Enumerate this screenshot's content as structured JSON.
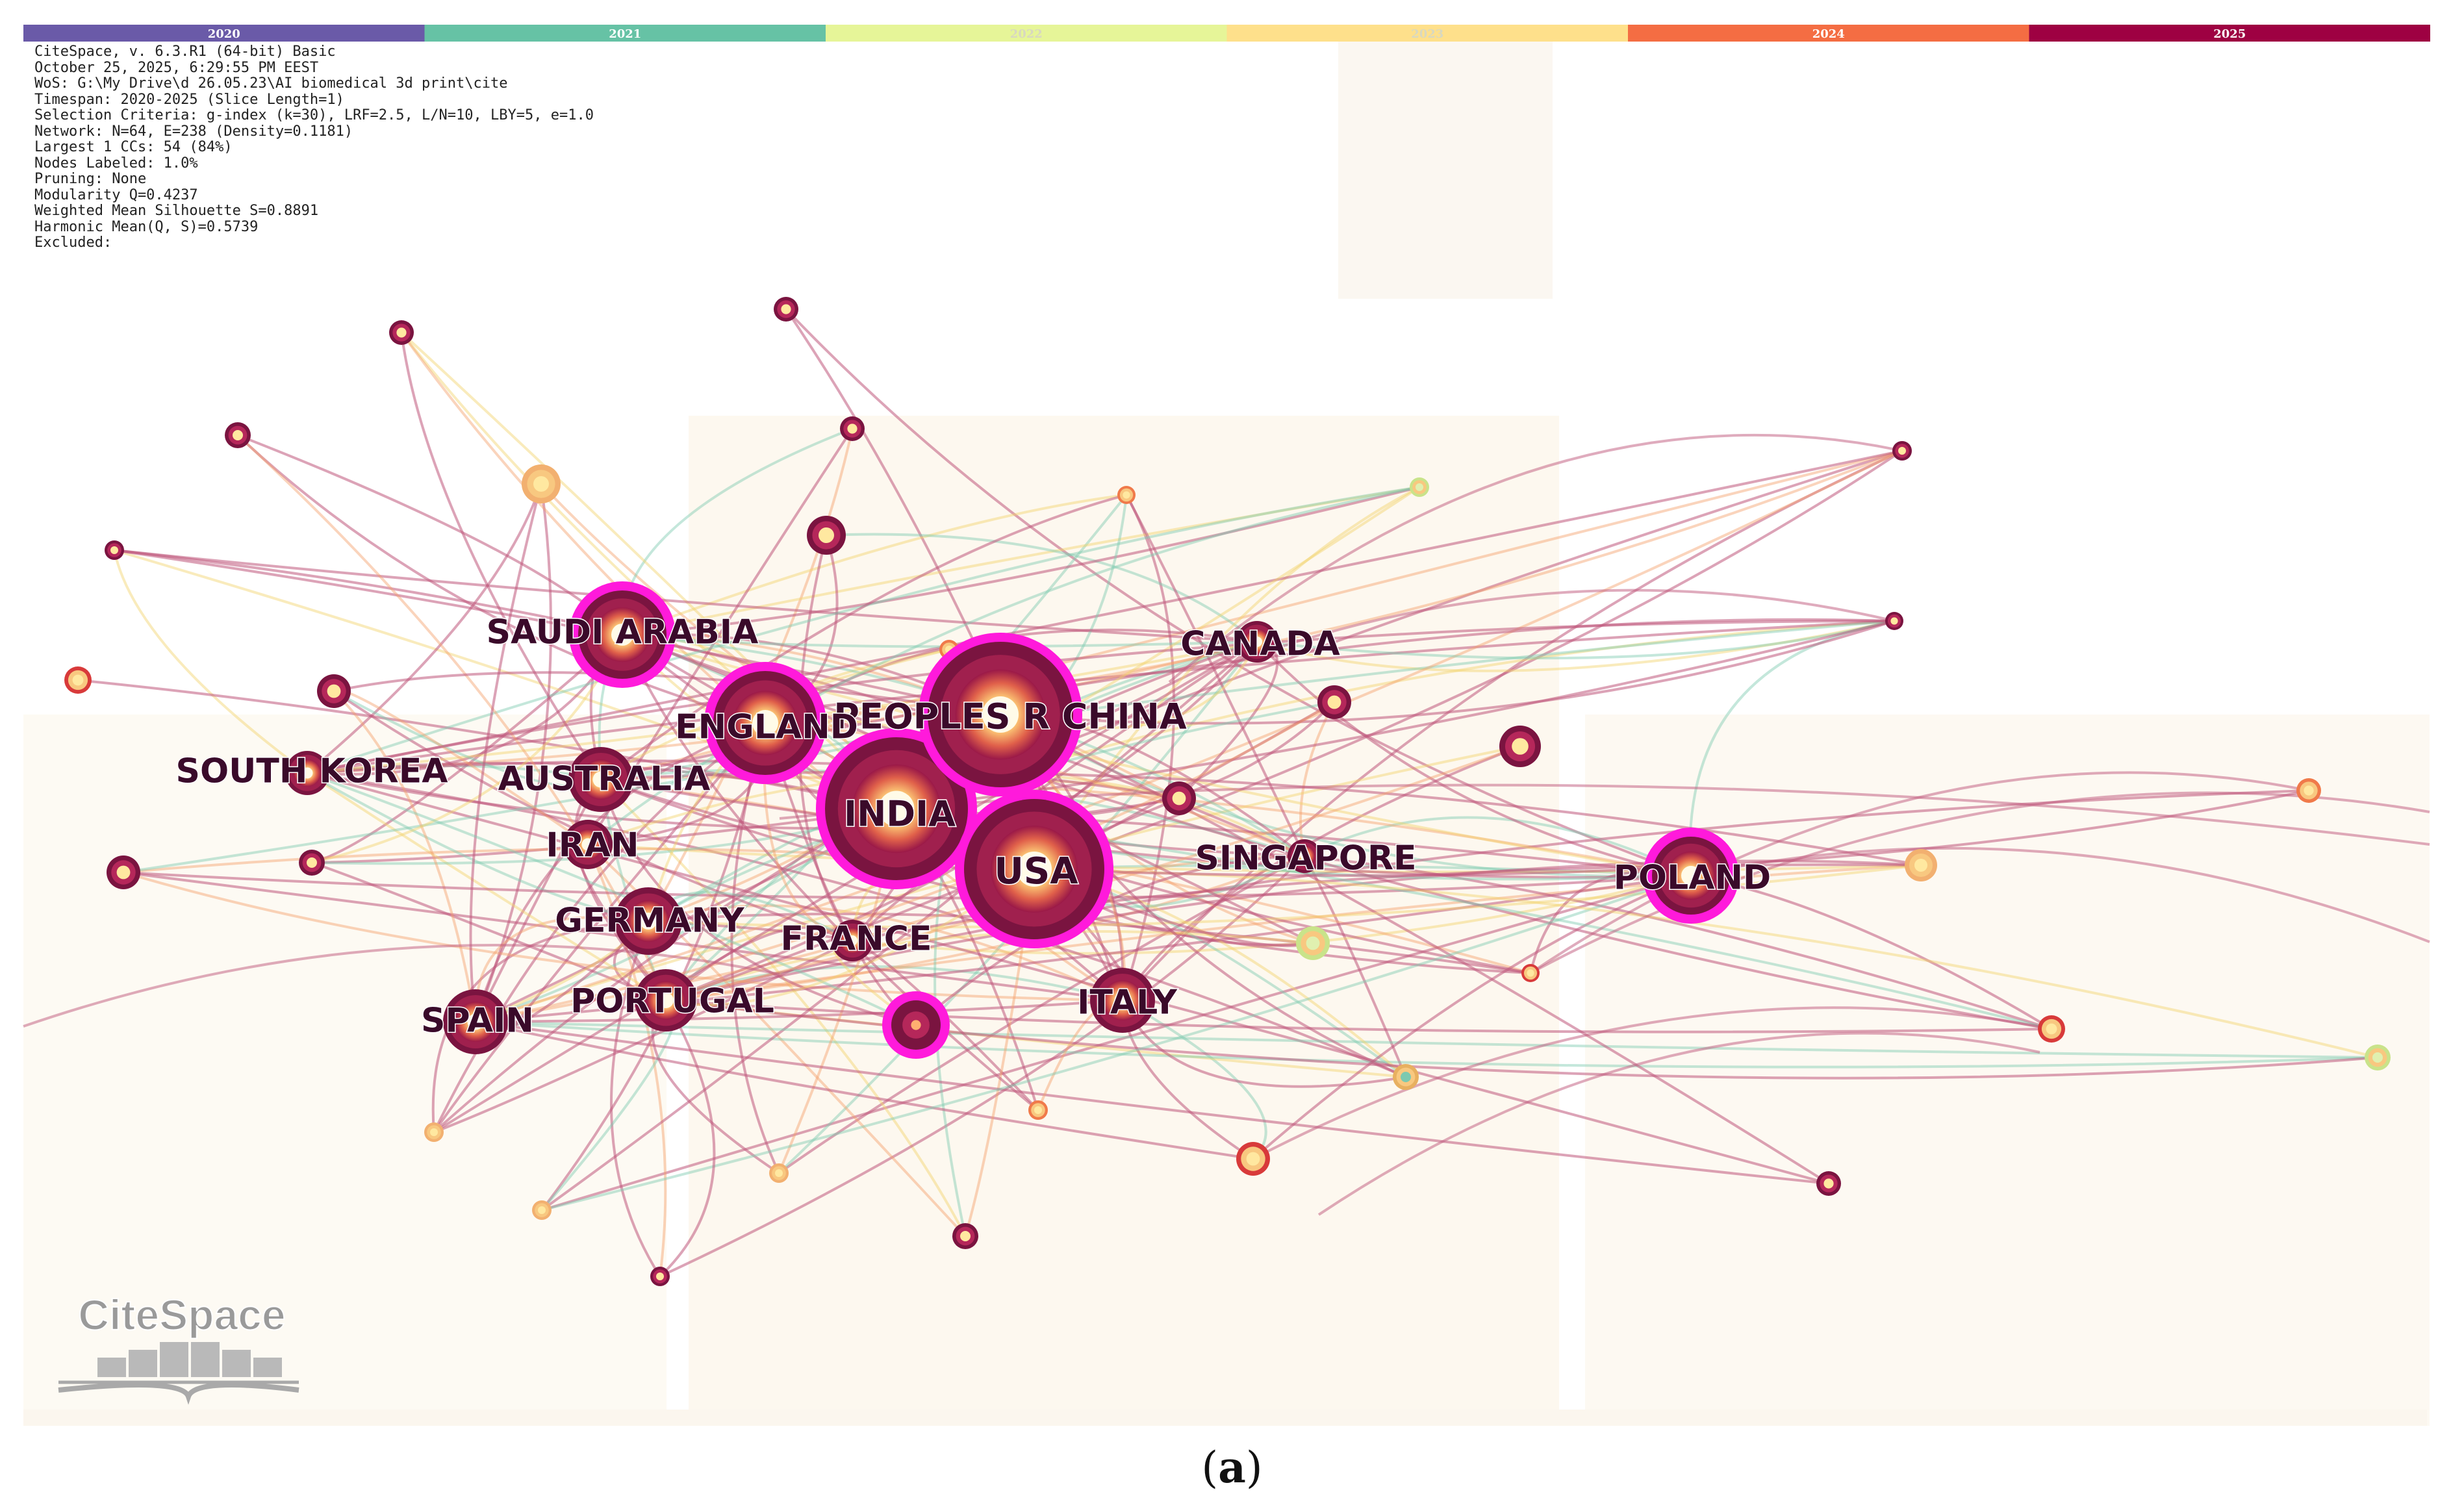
{
  "timeline": [
    {
      "year": "2020",
      "color": "#6a5aa8"
    },
    {
      "year": "2021",
      "color": "#66c2a5"
    },
    {
      "year": "2022",
      "color": "#e6f598"
    },
    {
      "year": "2023",
      "color": "#fee08b"
    },
    {
      "year": "2024",
      "color": "#f46d43"
    },
    {
      "year": "2025",
      "color": "#9e0142"
    }
  ],
  "info_lines": [
    "CiteSpace, v. 6.3.R1 (64-bit) Basic",
    "October 25, 2025, 6:29:55 PM EEST",
    "WoS: G:\\My Drive\\d 26.05.23\\AI biomedical 3d print\\cite",
    "Timespan: 2020-2025 (Slice Length=1)",
    "Selection Criteria: g-index (k=30), LRF=2.5, L/N=10, LBY=5, e=1.0",
    "Network: N=64, E=238 (Density=0.1181)",
    "Largest 1 CCs: 54 (84%)",
    "Nodes Labeled: 1.0%",
    "Pruning: None",
    "Modularity Q=0.4237",
    "Weighted Mean Silhouette S=0.8891",
    "Harmonic Mean(Q, S)=0.5739",
    "Excluded:"
  ],
  "logo_text": "CiteSpace",
  "caption": {
    "open": "(",
    "label": "a",
    "close": ")"
  },
  "colors": {
    "node_ring": "#b5275a",
    "node_dark": "#7a1440",
    "centrality_ring": "#ff1adb",
    "node_core": "#ffe8a0",
    "label_text": "#3a0a2a",
    "link_2020": "#c0587c",
    "link_2022": "#f2d36b",
    "link_2021": "#7cc9b0"
  },
  "nodes": [
    {
      "id": "india",
      "label": "INDIA",
      "size": 4,
      "burst": true
    },
    {
      "id": "usa",
      "label": "USA",
      "size": 4,
      "burst": true
    },
    {
      "id": "china",
      "label": "PEOPLES R CHINA",
      "size": 4,
      "burst": true
    },
    {
      "id": "england",
      "label": "ENGLAND",
      "size": 3,
      "burst": true
    },
    {
      "id": "saudi",
      "label": "SAUDI ARABIA",
      "size": 3,
      "burst": true
    },
    {
      "id": "poland",
      "label": "POLAND",
      "size": 2,
      "burst": true
    },
    {
      "id": "canada",
      "label": "CANADA",
      "size": 2,
      "burst": false
    },
    {
      "id": "singapore",
      "label": "SINGAPORE",
      "size": 1,
      "burst": false
    },
    {
      "id": "italy",
      "label": "ITALY",
      "size": 3,
      "burst": false
    },
    {
      "id": "france",
      "label": "FRANCE",
      "size": 2,
      "burst": false
    },
    {
      "id": "germany",
      "label": "GERMANY",
      "size": 3,
      "burst": false
    },
    {
      "id": "portugal",
      "label": "PORTUGAL",
      "size": 3,
      "burst": false
    },
    {
      "id": "spain",
      "label": "SPAIN",
      "size": 3,
      "burst": false
    },
    {
      "id": "iran",
      "label": "IRAN",
      "size": 2,
      "burst": false
    },
    {
      "id": "australia",
      "label": "AUSTRALIA",
      "size": 3,
      "burst": false
    },
    {
      "id": "skorea",
      "label": "SOUTH KOREA",
      "size": 2,
      "burst": false
    }
  ]
}
